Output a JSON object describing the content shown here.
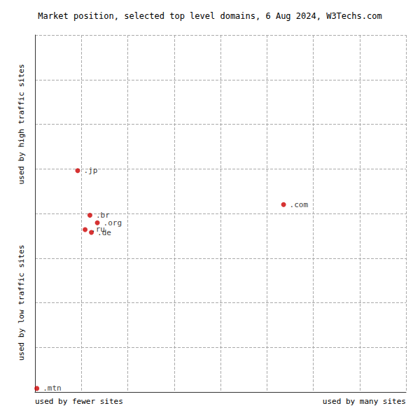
{
  "chart_data": {
    "type": "scatter",
    "title": "Market position, selected top level domains, 6 Aug 2024, W3Techs.com",
    "xlabel_left": "used by fewer sites",
    "xlabel_right": "used by many sites",
    "ylabel_top": "used by high traffic sites",
    "ylabel_bottom": "used by low traffic sites",
    "labels": [
      ".jp",
      ".com",
      ".br",
      ".org",
      ".ru",
      ".de",
      ".mtn"
    ],
    "x": [
      0.115,
      0.67,
      0.148,
      0.168,
      0.135,
      0.152,
      0.005
    ],
    "values": [
      0.62,
      0.525,
      0.495,
      0.474,
      0.455,
      0.447,
      0.01
    ],
    "color": "#cc0000",
    "marker": "circle",
    "xlim": [
      0,
      1
    ],
    "ylim": [
      0,
      1
    ],
    "xticks": [
      0,
      0.125,
      0.25,
      0.375,
      0.5,
      0.625,
      0.75,
      0.875,
      1
    ],
    "yticks": [
      0,
      0.125,
      0.25,
      0.375,
      0.5,
      0.625,
      0.75,
      0.875,
      1
    ],
    "grid": true,
    "tick_labels": false
  }
}
